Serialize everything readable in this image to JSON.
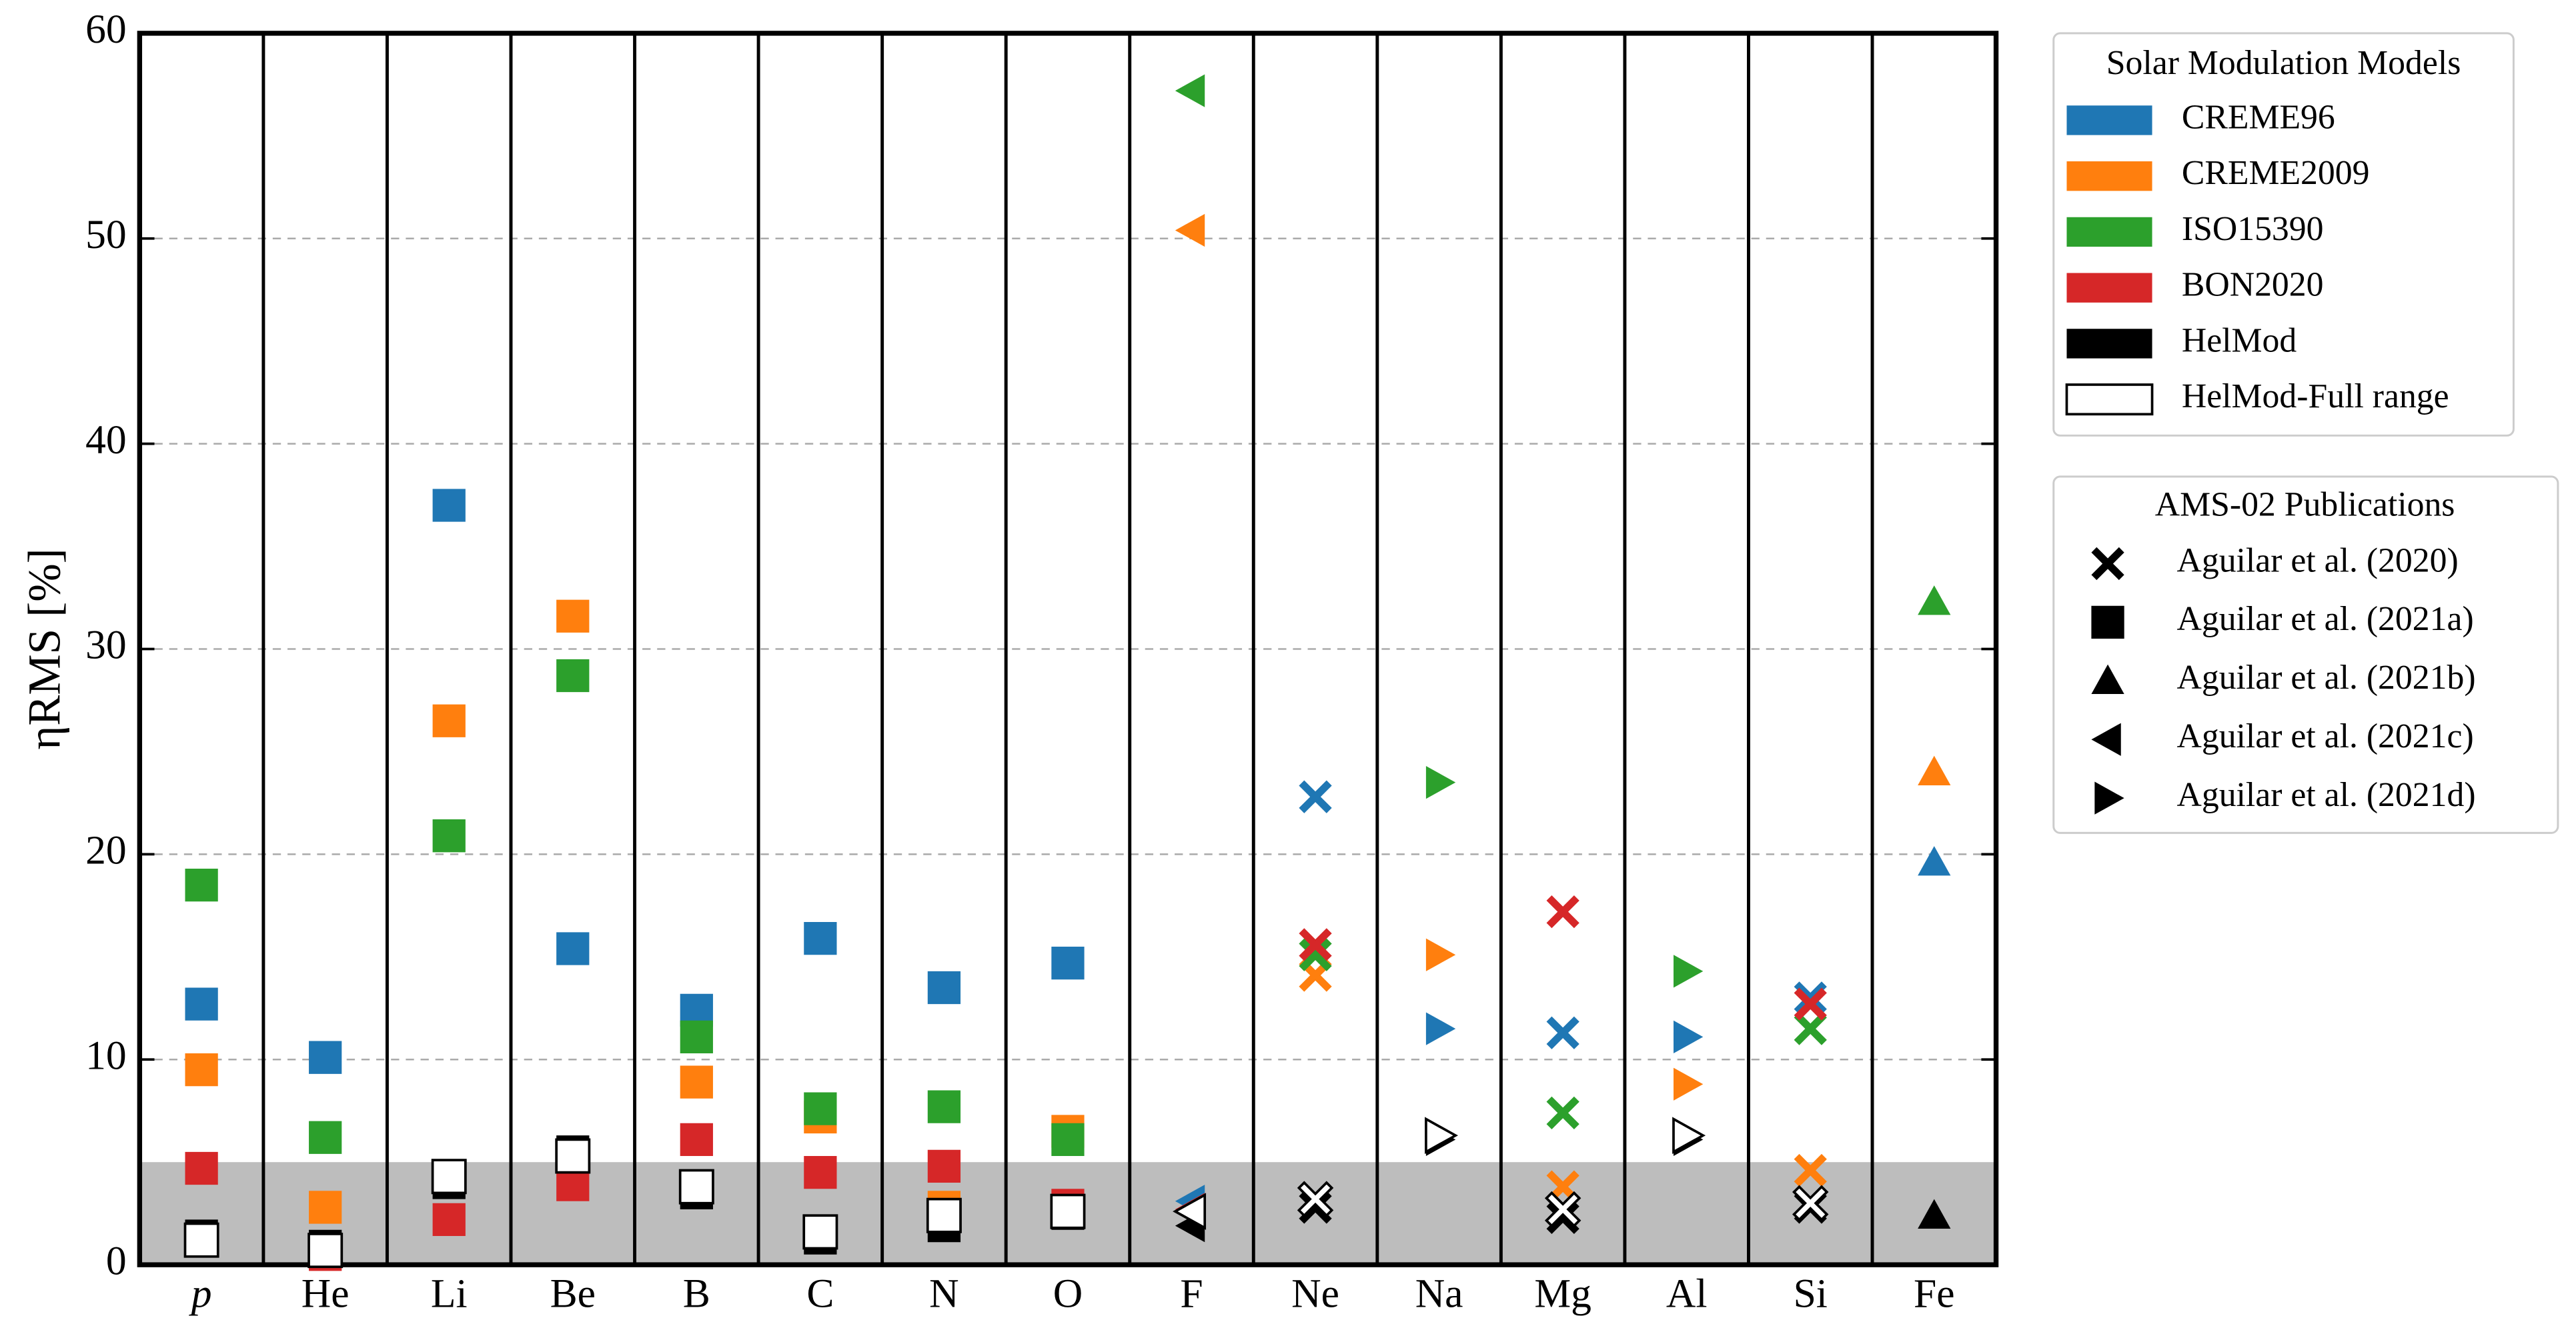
{
  "chart_data": {
    "type": "scatter",
    "y_label": "ηRMS [%]",
    "categories": [
      "p",
      "He",
      "Li",
      "Be",
      "B",
      "C",
      "N",
      "O",
      "F",
      "Ne",
      "Na",
      "Mg",
      "Al",
      "Si",
      "Fe"
    ],
    "ylim": [
      0,
      60
    ],
    "yticks": [
      0,
      10,
      20,
      30,
      40,
      50,
      60
    ],
    "grid": true,
    "shaded_ylim": [
      0,
      5
    ],
    "legend_title": "Solar Modulation Models",
    "series": [
      {
        "name": "CREME96",
        "color": "#1f77b4",
        "hollow": false,
        "values": [
          12.7,
          10.1,
          37.0,
          15.4,
          12.4,
          15.9,
          13.5,
          14.7,
          3.1,
          22.8,
          11.5,
          11.3,
          11.1,
          13.0,
          19.6
        ]
      },
      {
        "name": "CREME2009",
        "color": "#ff7f0e",
        "hollow": false,
        "values": [
          9.5,
          2.8,
          26.5,
          31.6,
          8.9,
          7.2,
          2.8,
          6.5,
          50.4,
          14.1,
          15.1,
          3.8,
          8.8,
          4.6,
          24.0
        ]
      },
      {
        "name": "ISO15390",
        "color": "#2ca02c",
        "hollow": false,
        "values": [
          18.5,
          6.2,
          20.9,
          28.7,
          11.1,
          7.6,
          7.7,
          6.1,
          57.2,
          15.1,
          23.5,
          7.4,
          14.3,
          11.5,
          32.3
        ]
      },
      {
        "name": "BON2020",
        "color": "#d62728",
        "hollow": false,
        "values": [
          4.7,
          0.5,
          2.2,
          3.9,
          6.1,
          4.5,
          4.8,
          2.9,
          2.7,
          15.6,
          null,
          17.2,
          null,
          12.7,
          null
        ]
      },
      {
        "name": "HelMod",
        "color": "#000000",
        "hollow": false,
        "values": [
          1.4,
          0.9,
          4.0,
          5.5,
          3.5,
          1.3,
          1.9,
          2.5,
          1.9,
          2.8,
          6.1,
          2.3,
          6.1,
          2.8,
          2.4
        ]
      },
      {
        "name": "HelMod-Full range",
        "color": "#000000",
        "hollow": true,
        "values": [
          1.2,
          0.7,
          4.3,
          5.3,
          3.8,
          1.6,
          2.4,
          2.6,
          2.6,
          3.2,
          6.3,
          2.7,
          6.3,
          3.0,
          null
        ]
      }
    ],
    "markers_title": "AMS-02 Publications",
    "markers": [
      {
        "name": "Aguilar et al. (2020)",
        "shape": "x"
      },
      {
        "name": "Aguilar et al. (2021a)",
        "shape": "square"
      },
      {
        "name": "Aguilar et al. (2021b)",
        "shape": "triangle-up"
      },
      {
        "name": "Aguilar et al. (2021c)",
        "shape": "triangle-left"
      },
      {
        "name": "Aguilar et al. (2021d)",
        "shape": "triangle-right"
      }
    ],
    "category_markers": [
      1,
      1,
      1,
      1,
      1,
      1,
      1,
      1,
      3,
      0,
      4,
      0,
      4,
      0,
      2
    ]
  }
}
